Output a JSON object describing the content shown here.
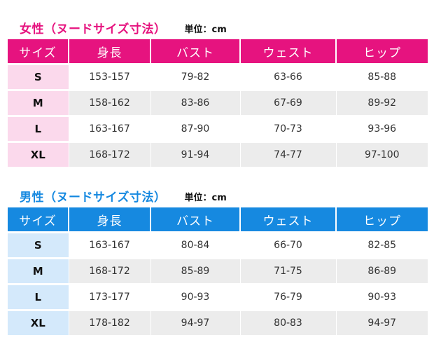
{
  "women": {
    "title": "女性（ヌードサイズ寸法）",
    "unit": "単位：cm",
    "headers": [
      "サイズ",
      "身長",
      "バスト",
      "ウェスト",
      "ヒップ"
    ],
    "rows": [
      {
        "size": "S",
        "height": "153-157",
        "bust": "79-82",
        "waist": "63-66",
        "hip": "85-88"
      },
      {
        "size": "M",
        "height": "158-162",
        "bust": "83-86",
        "waist": "67-69",
        "hip": "89-92"
      },
      {
        "size": "L",
        "height": "163-167",
        "bust": "87-90",
        "waist": "70-73",
        "hip": "93-96"
      },
      {
        "size": "XL",
        "height": "168-172",
        "bust": "91-94",
        "waist": "74-77",
        "hip": "97-100"
      }
    ],
    "colors": {
      "header": "#e6137f",
      "size_cell": "#fbd9ec"
    }
  },
  "men": {
    "title": "男性（ヌードサイズ寸法）",
    "unit": "単位：cm",
    "headers": [
      "サイズ",
      "身長",
      "バスト",
      "ウェスト",
      "ヒップ"
    ],
    "rows": [
      {
        "size": "S",
        "height": "163-167",
        "bust": "80-84",
        "waist": "66-70",
        "hip": "82-85"
      },
      {
        "size": "M",
        "height": "168-172",
        "bust": "85-89",
        "waist": "71-75",
        "hip": "86-89"
      },
      {
        "size": "L",
        "height": "173-177",
        "bust": "90-93",
        "waist": "76-79",
        "hip": "90-93"
      },
      {
        "size": "XL",
        "height": "178-182",
        "bust": "94-97",
        "waist": "80-83",
        "hip": "94-97"
      }
    ],
    "colors": {
      "header": "#1689e0",
      "size_cell": "#d4e9fb"
    }
  }
}
